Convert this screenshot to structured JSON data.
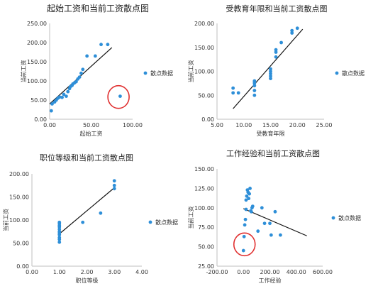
{
  "colors": {
    "marker": "#2e8fd8",
    "trendline": "#111111",
    "axis": "#bfbfbf",
    "highlight": "#e03030"
  },
  "chart_data": [
    {
      "type": "scatter",
      "title": "起始工资和当前工资散点图",
      "xlabel": "起始工资",
      "ylabel": "当前工资",
      "xlim": [
        0,
        100
      ],
      "ylim": [
        0,
        250
      ],
      "xticks": [
        "0.00",
        "50.00",
        "100.00"
      ],
      "yticks": [
        "0.00",
        "50.00",
        "100.00",
        "150.00",
        "200.00",
        "250.00"
      ],
      "legend": "散点数据",
      "legend_position": "right",
      "grid": false,
      "points": [
        [
          2,
          22
        ],
        [
          3,
          40
        ],
        [
          6,
          45
        ],
        [
          8,
          50
        ],
        [
          10,
          55
        ],
        [
          12,
          58
        ],
        [
          15,
          57
        ],
        [
          20,
          60
        ],
        [
          17,
          65
        ],
        [
          22,
          72
        ],
        [
          24,
          80
        ],
        [
          25,
          85
        ],
        [
          27,
          88
        ],
        [
          28,
          92
        ],
        [
          30,
          95
        ],
        [
          32,
          98
        ],
        [
          34,
          105
        ],
        [
          36,
          110
        ],
        [
          38,
          120
        ],
        [
          40,
          130
        ],
        [
          45,
          165
        ],
        [
          55,
          165
        ],
        [
          62,
          195
        ],
        [
          70,
          195
        ],
        [
          85,
          60
        ]
      ],
      "trendline": [
        [
          0,
          40
        ],
        [
          75,
          187
        ]
      ],
      "highlight": {
        "x": 83,
        "y": 58
      }
    },
    {
      "type": "scatter",
      "title": "受教育年限和当前工资散点图",
      "xlabel": "受教育年限",
      "ylabel": "当前工资",
      "xlim": [
        5,
        25
      ],
      "ylim": [
        0,
        200
      ],
      "xticks": [
        "5.00",
        "10.00",
        "15.00",
        "20.00",
        "25.00"
      ],
      "yticks": [
        "0.00",
        "50.00",
        "100.00",
        "150.00",
        "200.00"
      ],
      "legend": "散点数据",
      "legend_position": "right",
      "grid": false,
      "points": [
        [
          8,
          65
        ],
        [
          8,
          55
        ],
        [
          9,
          55
        ],
        [
          12,
          50
        ],
        [
          12,
          60
        ],
        [
          12,
          70
        ],
        [
          12,
          75
        ],
        [
          12,
          80
        ],
        [
          12,
          78
        ],
        [
          15,
          85
        ],
        [
          15,
          90
        ],
        [
          15,
          95
        ],
        [
          15,
          100
        ],
        [
          15,
          105
        ],
        [
          16,
          130
        ],
        [
          16,
          140
        ],
        [
          16,
          145
        ],
        [
          17,
          160
        ],
        [
          19,
          180
        ],
        [
          19,
          185
        ],
        [
          20,
          190
        ]
      ],
      "trendline": [
        [
          8,
          22
        ],
        [
          21,
          188
        ]
      ]
    },
    {
      "type": "scatter",
      "title": "职位等级和当前工资散点图",
      "xlabel": "职位等级",
      "ylabel": "当前工资",
      "xlim": [
        0,
        4
      ],
      "ylim": [
        0,
        200
      ],
      "xticks": [
        "0.00",
        "1.00",
        "2.00",
        "3.00",
        "4.00"
      ],
      "yticks": [
        "0.00",
        "50.00",
        "100.00",
        "150.00",
        "200.00"
      ],
      "legend": "散点数据",
      "legend_position": "right",
      "grid": false,
      "points": [
        [
          1,
          52
        ],
        [
          1,
          58
        ],
        [
          1,
          62
        ],
        [
          1,
          68
        ],
        [
          1,
          72
        ],
        [
          1,
          75
        ],
        [
          1,
          80
        ],
        [
          1,
          85
        ],
        [
          1,
          88
        ],
        [
          1,
          92
        ],
        [
          1,
          95
        ],
        [
          1.85,
          95
        ],
        [
          2.5,
          115
        ],
        [
          3,
          168
        ],
        [
          3,
          175
        ],
        [
          3,
          185
        ]
      ],
      "trendline": [
        [
          1,
          70
        ],
        [
          3,
          170
        ]
      ]
    },
    {
      "type": "scatter",
      "title": "工作经验和当前工资散点图",
      "xlabel": "工作经验",
      "ylabel": "当前工资",
      "xlim": [
        -200,
        600
      ],
      "ylim": [
        25,
        150
      ],
      "xticks": [
        "-200.00",
        "0.00",
        "200.00",
        "400.00",
        "600.00"
      ],
      "yticks": [
        "25.00",
        "50.00",
        "75.00",
        "100.00",
        "125.00",
        "150.00"
      ],
      "legend": "散点数据",
      "legend_position": "right",
      "grid": false,
      "points": [
        [
          0,
          45
        ],
        [
          5,
          63
        ],
        [
          10,
          78
        ],
        [
          15,
          85
        ],
        [
          20,
          98
        ],
        [
          20,
          110
        ],
        [
          25,
          115
        ],
        [
          30,
          123
        ],
        [
          35,
          120
        ],
        [
          40,
          112
        ],
        [
          45,
          118
        ],
        [
          50,
          125
        ],
        [
          55,
          96
        ],
        [
          60,
          95
        ],
        [
          65,
          100
        ],
        [
          70,
          102
        ],
        [
          110,
          70
        ],
        [
          140,
          100
        ],
        [
          160,
          80
        ],
        [
          200,
          80
        ],
        [
          210,
          65
        ],
        [
          240,
          95
        ],
        [
          280,
          65
        ]
      ],
      "trendline": [
        [
          0,
          99
        ],
        [
          480,
          64
        ]
      ],
      "highlight": {
        "x": 8,
        "y": 53
      }
    }
  ]
}
